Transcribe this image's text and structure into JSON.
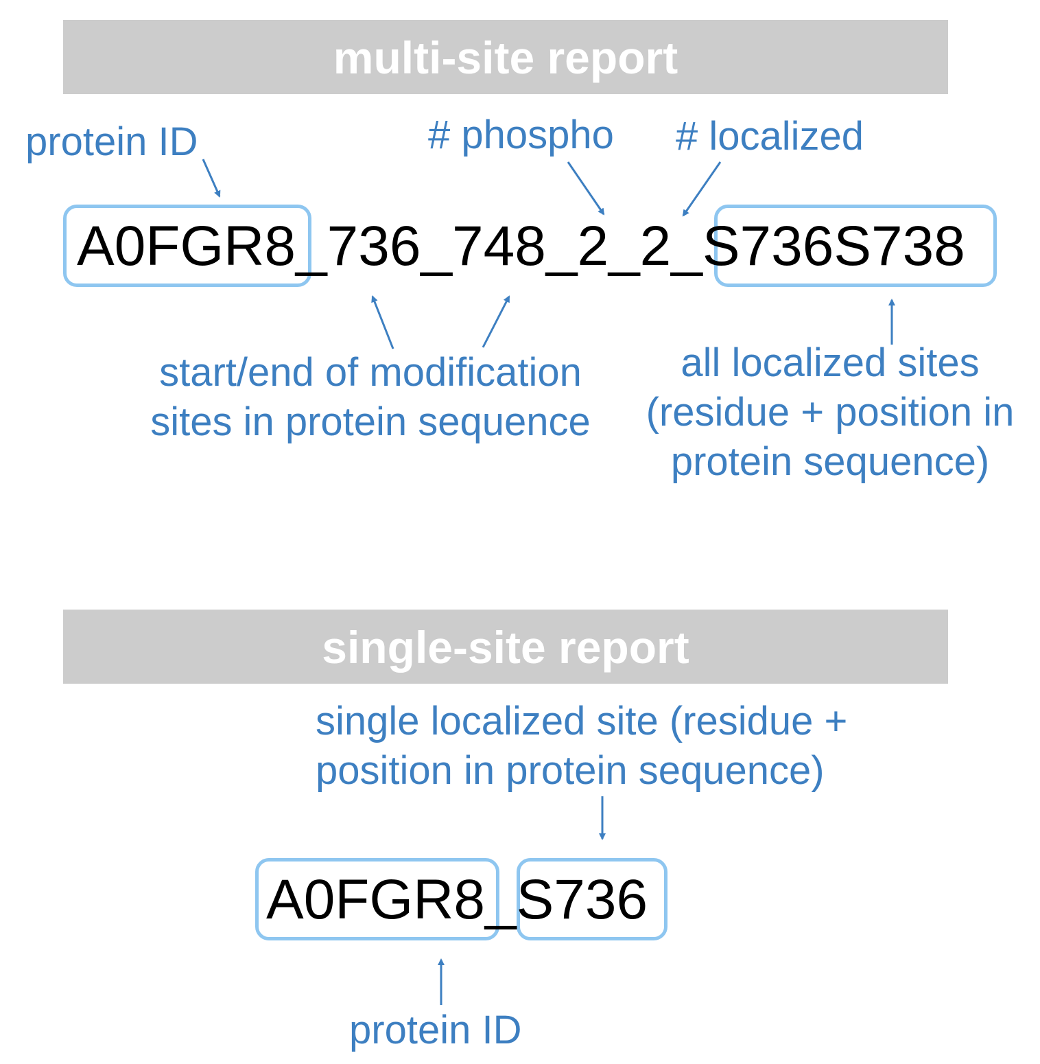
{
  "multi_site": {
    "title": "multi-site report",
    "sequence": {
      "protein_id": "A0FGR8",
      "middle": "_736_748_2_2_",
      "sites": "S736S738"
    },
    "labels": {
      "protein_id": "protein ID",
      "phospho": "# phospho",
      "localized": "# localized",
      "start_end_line1": "start/end of modification",
      "start_end_line2": "sites in protein sequence",
      "all_sites_line1": "all localized sites",
      "all_sites_line2": "(residue + position in",
      "all_sites_line3": "protein sequence)"
    }
  },
  "single_site": {
    "title": "single-site report",
    "sequence": {
      "protein_id": "A0FGR8",
      "separator": "_",
      "site": "S736"
    },
    "labels": {
      "site_line1": "single localized site (residue +",
      "site_line2": "position in protein sequence)",
      "protein_id": "protein ID"
    }
  },
  "colors": {
    "label": "#3d7fc1",
    "box_border": "#8ec6f0",
    "banner": "#cccccc",
    "arrow": "#3d7fc1"
  }
}
